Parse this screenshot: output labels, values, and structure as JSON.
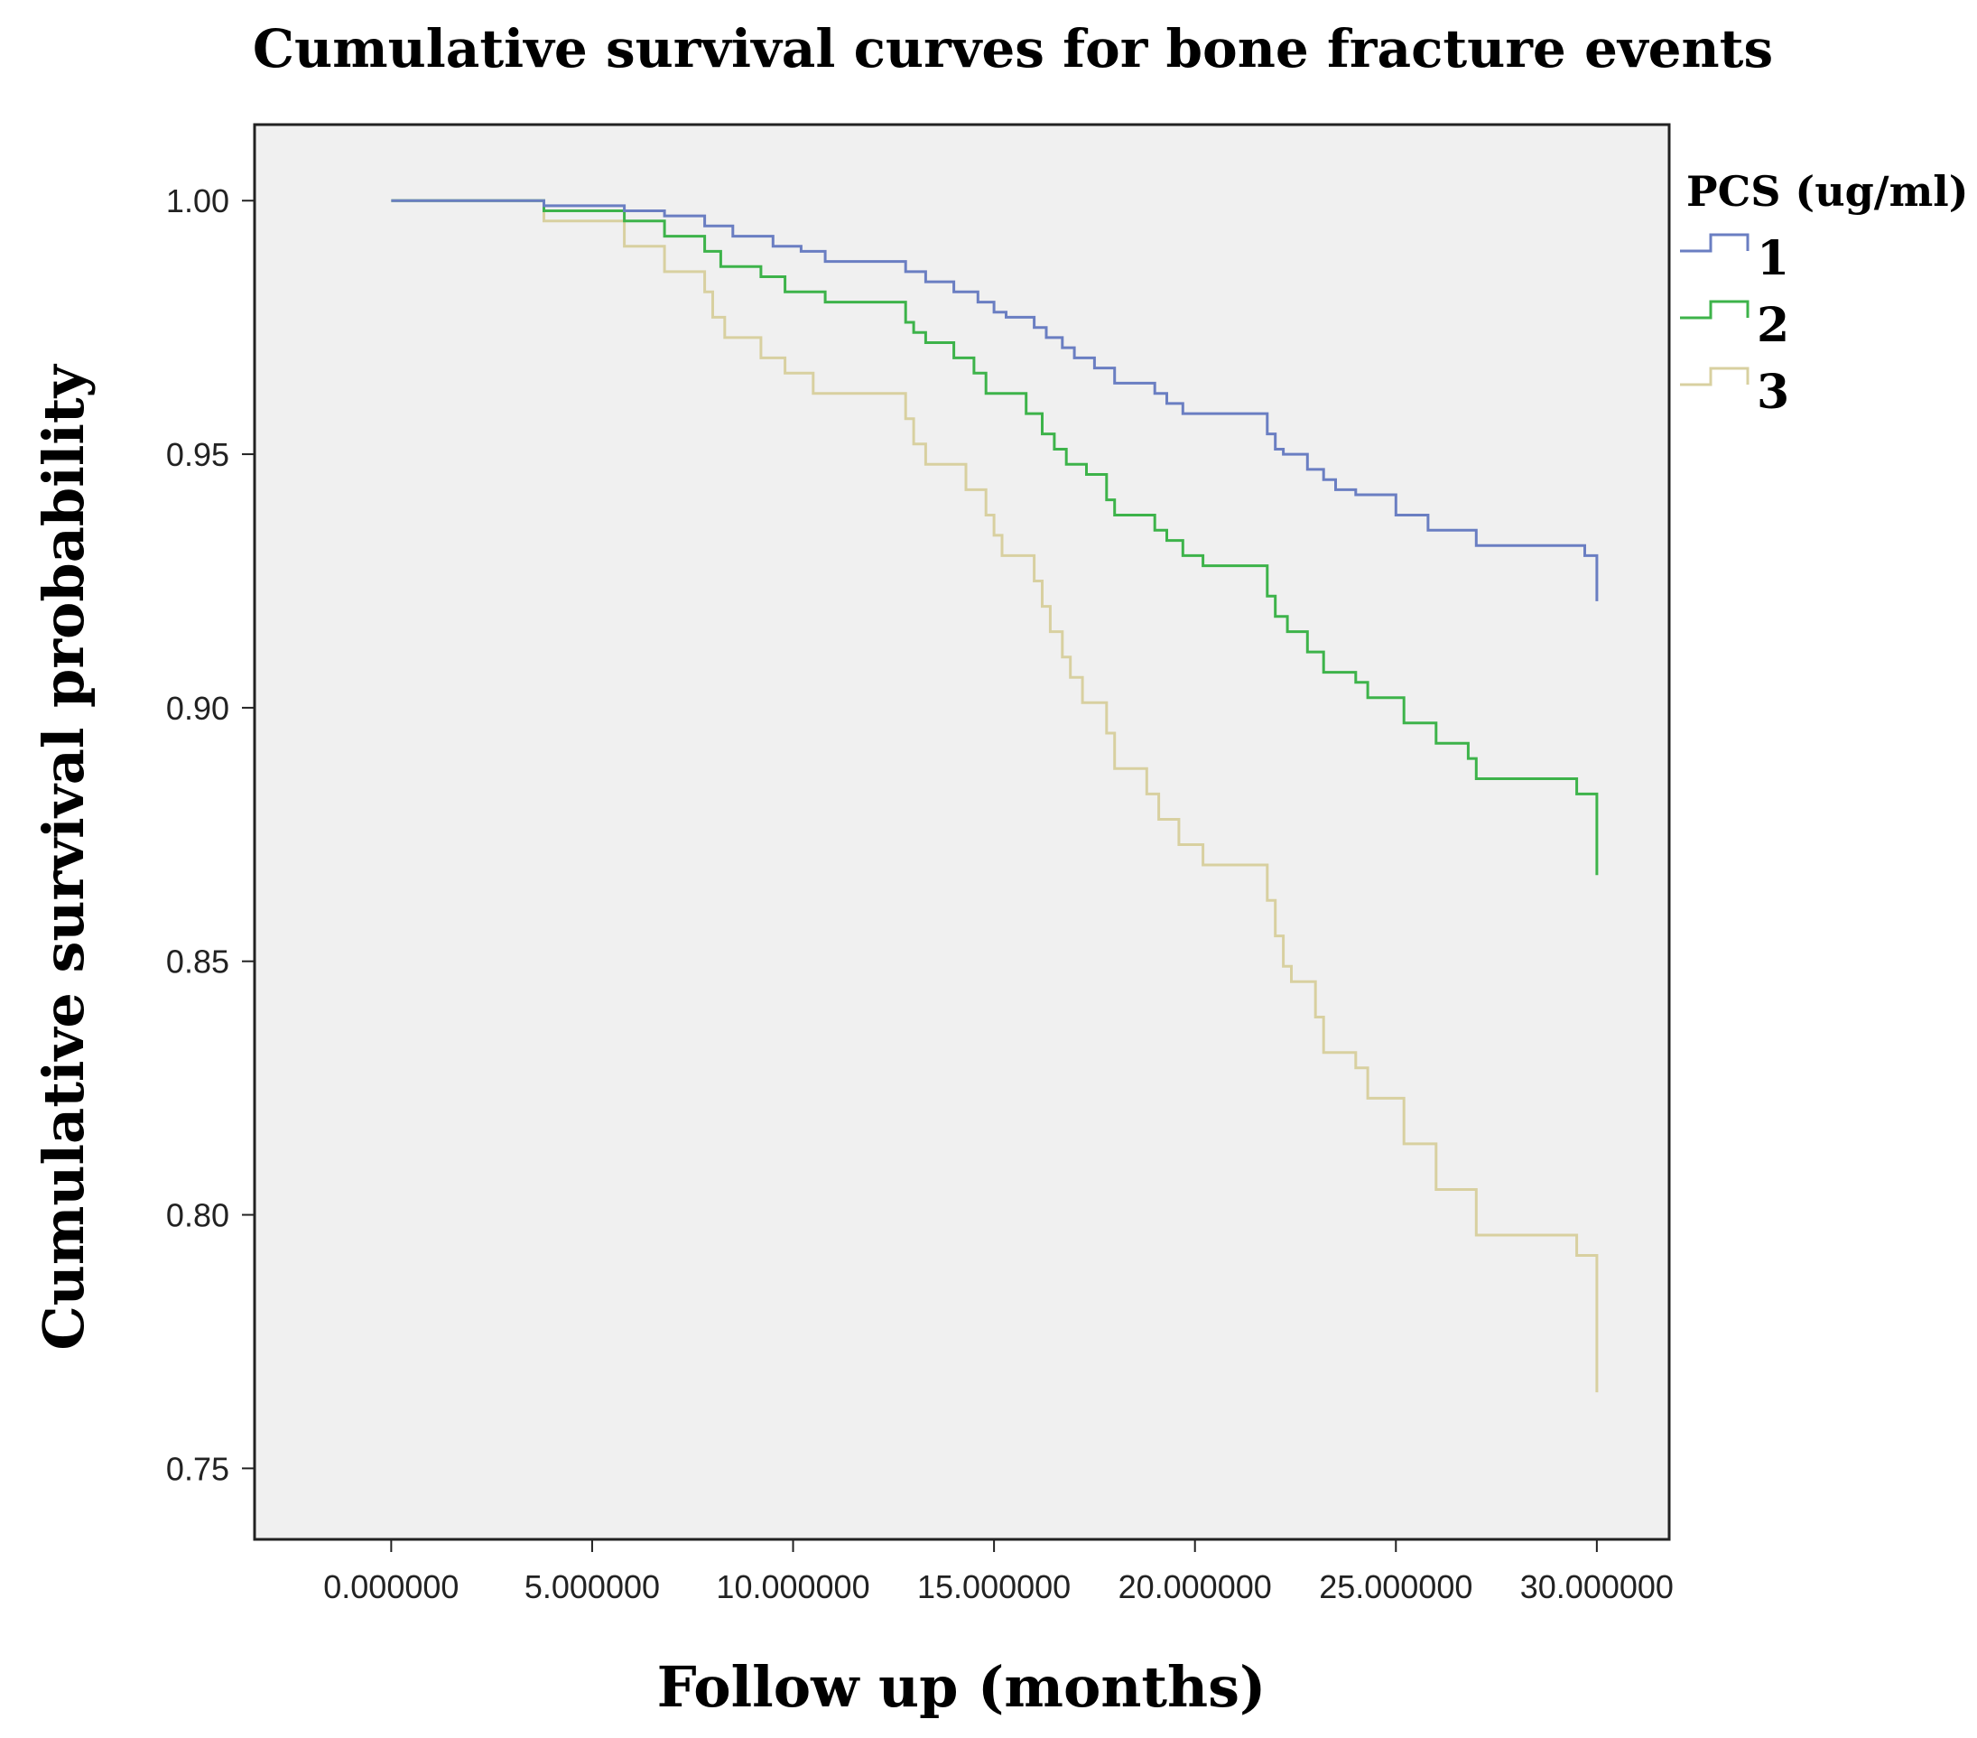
{
  "chart_data": {
    "type": "line",
    "step": true,
    "title": "Cumulative survival curves for bone fracture events",
    "xlabel": "Follow up (months)",
    "ylabel": "Cumulative survival probability",
    "xlim": [
      -3.4,
      31.8
    ],
    "ylim": [
      0.736,
      1.015
    ],
    "xticks": [
      0,
      5,
      10,
      15,
      20,
      25,
      30
    ],
    "xtick_labels": [
      "0.000000",
      "5.000000",
      "10.000000",
      "15.000000",
      "20.000000",
      "25.000000",
      "30.000000"
    ],
    "yticks": [
      1.0,
      0.95,
      0.9,
      0.85,
      0.8,
      0.75
    ],
    "ytick_labels": [
      "1.00",
      "0.95",
      "0.90",
      "0.85",
      "0.80",
      "0.75"
    ],
    "grid": false,
    "legend": {
      "title": "PCS (ug/ml)",
      "position": "top-right-outside"
    },
    "series": [
      {
        "name": "1",
        "color": "#6a7ec2",
        "points": [
          [
            0,
            1.0
          ],
          [
            3.8,
            1.0
          ],
          [
            3.8,
            0.999
          ],
          [
            5.8,
            0.999
          ],
          [
            5.8,
            0.998
          ],
          [
            6.8,
            0.998
          ],
          [
            6.8,
            0.997
          ],
          [
            7.8,
            0.997
          ],
          [
            7.8,
            0.995
          ],
          [
            8.5,
            0.995
          ],
          [
            8.5,
            0.993
          ],
          [
            9.5,
            0.993
          ],
          [
            9.5,
            0.991
          ],
          [
            10.2,
            0.991
          ],
          [
            10.2,
            0.99
          ],
          [
            10.8,
            0.99
          ],
          [
            10.8,
            0.988
          ],
          [
            12.8,
            0.988
          ],
          [
            12.8,
            0.986
          ],
          [
            13.3,
            0.986
          ],
          [
            13.3,
            0.984
          ],
          [
            14.0,
            0.984
          ],
          [
            14.0,
            0.982
          ],
          [
            14.6,
            0.982
          ],
          [
            14.6,
            0.98
          ],
          [
            15.0,
            0.98
          ],
          [
            15.0,
            0.978
          ],
          [
            15.3,
            0.978
          ],
          [
            15.3,
            0.977
          ],
          [
            16.0,
            0.977
          ],
          [
            16.0,
            0.975
          ],
          [
            16.3,
            0.975
          ],
          [
            16.3,
            0.973
          ],
          [
            16.7,
            0.973
          ],
          [
            16.7,
            0.971
          ],
          [
            17.0,
            0.971
          ],
          [
            17.0,
            0.969
          ],
          [
            17.5,
            0.969
          ],
          [
            17.5,
            0.967
          ],
          [
            18.0,
            0.967
          ],
          [
            18.0,
            0.964
          ],
          [
            19.0,
            0.964
          ],
          [
            19.0,
            0.962
          ],
          [
            19.3,
            0.962
          ],
          [
            19.3,
            0.96
          ],
          [
            19.7,
            0.96
          ],
          [
            19.7,
            0.958
          ],
          [
            21.8,
            0.958
          ],
          [
            21.8,
            0.954
          ],
          [
            22.0,
            0.954
          ],
          [
            22.0,
            0.951
          ],
          [
            22.2,
            0.951
          ],
          [
            22.2,
            0.95
          ],
          [
            22.8,
            0.95
          ],
          [
            22.8,
            0.947
          ],
          [
            23.2,
            0.947
          ],
          [
            23.2,
            0.945
          ],
          [
            23.5,
            0.945
          ],
          [
            23.5,
            0.943
          ],
          [
            24.0,
            0.943
          ],
          [
            24.0,
            0.942
          ],
          [
            25.0,
            0.942
          ],
          [
            25.0,
            0.938
          ],
          [
            25.8,
            0.938
          ],
          [
            25.8,
            0.935
          ],
          [
            27.0,
            0.935
          ],
          [
            27.0,
            0.932
          ],
          [
            29.7,
            0.932
          ],
          [
            29.7,
            0.93
          ],
          [
            30.0,
            0.93
          ],
          [
            30.0,
            0.921
          ]
        ]
      },
      {
        "name": "2",
        "color": "#3db34a",
        "points": [
          [
            0,
            1.0
          ],
          [
            3.8,
            1.0
          ],
          [
            3.8,
            0.998
          ],
          [
            5.8,
            0.998
          ],
          [
            5.8,
            0.996
          ],
          [
            6.8,
            0.996
          ],
          [
            6.8,
            0.993
          ],
          [
            7.8,
            0.993
          ],
          [
            7.8,
            0.99
          ],
          [
            8.2,
            0.99
          ],
          [
            8.2,
            0.987
          ],
          [
            9.2,
            0.987
          ],
          [
            9.2,
            0.985
          ],
          [
            9.8,
            0.985
          ],
          [
            9.8,
            0.982
          ],
          [
            10.8,
            0.982
          ],
          [
            10.8,
            0.98
          ],
          [
            12.8,
            0.98
          ],
          [
            12.8,
            0.976
          ],
          [
            13.0,
            0.976
          ],
          [
            13.0,
            0.974
          ],
          [
            13.3,
            0.974
          ],
          [
            13.3,
            0.972
          ],
          [
            14.0,
            0.972
          ],
          [
            14.0,
            0.969
          ],
          [
            14.5,
            0.969
          ],
          [
            14.5,
            0.966
          ],
          [
            14.8,
            0.966
          ],
          [
            14.8,
            0.962
          ],
          [
            15.8,
            0.962
          ],
          [
            15.8,
            0.958
          ],
          [
            16.2,
            0.958
          ],
          [
            16.2,
            0.954
          ],
          [
            16.5,
            0.954
          ],
          [
            16.5,
            0.951
          ],
          [
            16.8,
            0.951
          ],
          [
            16.8,
            0.948
          ],
          [
            17.3,
            0.948
          ],
          [
            17.3,
            0.946
          ],
          [
            17.8,
            0.946
          ],
          [
            17.8,
            0.941
          ],
          [
            18.0,
            0.941
          ],
          [
            18.0,
            0.938
          ],
          [
            19.0,
            0.938
          ],
          [
            19.0,
            0.935
          ],
          [
            19.3,
            0.935
          ],
          [
            19.3,
            0.933
          ],
          [
            19.7,
            0.933
          ],
          [
            19.7,
            0.93
          ],
          [
            20.2,
            0.93
          ],
          [
            20.2,
            0.928
          ],
          [
            21.8,
            0.928
          ],
          [
            21.8,
            0.922
          ],
          [
            22.0,
            0.922
          ],
          [
            22.0,
            0.918
          ],
          [
            22.3,
            0.918
          ],
          [
            22.3,
            0.915
          ],
          [
            22.8,
            0.915
          ],
          [
            22.8,
            0.911
          ],
          [
            23.2,
            0.911
          ],
          [
            23.2,
            0.907
          ],
          [
            24.0,
            0.907
          ],
          [
            24.0,
            0.905
          ],
          [
            24.3,
            0.905
          ],
          [
            24.3,
            0.902
          ],
          [
            25.2,
            0.902
          ],
          [
            25.2,
            0.897
          ],
          [
            26.0,
            0.897
          ],
          [
            26.0,
            0.893
          ],
          [
            26.8,
            0.893
          ],
          [
            26.8,
            0.89
          ],
          [
            27.0,
            0.89
          ],
          [
            27.0,
            0.886
          ],
          [
            29.5,
            0.886
          ],
          [
            29.5,
            0.883
          ],
          [
            30.0,
            0.883
          ],
          [
            30.0,
            0.867
          ]
        ]
      },
      {
        "name": "3",
        "color": "#d8d0a0",
        "points": [
          [
            0,
            1.0
          ],
          [
            3.8,
            1.0
          ],
          [
            3.8,
            0.996
          ],
          [
            5.8,
            0.996
          ],
          [
            5.8,
            0.991
          ],
          [
            6.8,
            0.991
          ],
          [
            6.8,
            0.986
          ],
          [
            7.8,
            0.986
          ],
          [
            7.8,
            0.982
          ],
          [
            8.0,
            0.982
          ],
          [
            8.0,
            0.977
          ],
          [
            8.3,
            0.977
          ],
          [
            8.3,
            0.973
          ],
          [
            9.2,
            0.973
          ],
          [
            9.2,
            0.969
          ],
          [
            9.8,
            0.969
          ],
          [
            9.8,
            0.966
          ],
          [
            10.5,
            0.966
          ],
          [
            10.5,
            0.962
          ],
          [
            12.8,
            0.962
          ],
          [
            12.8,
            0.957
          ],
          [
            13.0,
            0.957
          ],
          [
            13.0,
            0.952
          ],
          [
            13.3,
            0.952
          ],
          [
            13.3,
            0.948
          ],
          [
            14.3,
            0.948
          ],
          [
            14.3,
            0.943
          ],
          [
            14.8,
            0.943
          ],
          [
            14.8,
            0.938
          ],
          [
            15.0,
            0.938
          ],
          [
            15.0,
            0.934
          ],
          [
            15.2,
            0.934
          ],
          [
            15.2,
            0.93
          ],
          [
            16.0,
            0.93
          ],
          [
            16.0,
            0.925
          ],
          [
            16.2,
            0.925
          ],
          [
            16.2,
            0.92
          ],
          [
            16.4,
            0.92
          ],
          [
            16.4,
            0.915
          ],
          [
            16.7,
            0.915
          ],
          [
            16.7,
            0.91
          ],
          [
            16.9,
            0.91
          ],
          [
            16.9,
            0.906
          ],
          [
            17.2,
            0.906
          ],
          [
            17.2,
            0.901
          ],
          [
            17.8,
            0.901
          ],
          [
            17.8,
            0.895
          ],
          [
            18.0,
            0.895
          ],
          [
            18.0,
            0.888
          ],
          [
            18.8,
            0.888
          ],
          [
            18.8,
            0.883
          ],
          [
            19.1,
            0.883
          ],
          [
            19.1,
            0.878
          ],
          [
            19.6,
            0.878
          ],
          [
            19.6,
            0.873
          ],
          [
            20.2,
            0.873
          ],
          [
            20.2,
            0.869
          ],
          [
            21.8,
            0.869
          ],
          [
            21.8,
            0.862
          ],
          [
            22.0,
            0.862
          ],
          [
            22.0,
            0.855
          ],
          [
            22.2,
            0.855
          ],
          [
            22.2,
            0.849
          ],
          [
            22.4,
            0.849
          ],
          [
            22.4,
            0.846
          ],
          [
            23.0,
            0.846
          ],
          [
            23.0,
            0.839
          ],
          [
            23.2,
            0.839
          ],
          [
            23.2,
            0.832
          ],
          [
            24.0,
            0.832
          ],
          [
            24.0,
            0.829
          ],
          [
            24.3,
            0.829
          ],
          [
            24.3,
            0.823
          ],
          [
            25.2,
            0.823
          ],
          [
            25.2,
            0.814
          ],
          [
            26.0,
            0.814
          ],
          [
            26.0,
            0.805
          ],
          [
            27.0,
            0.805
          ],
          [
            27.0,
            0.796
          ],
          [
            29.5,
            0.796
          ],
          [
            29.5,
            0.792
          ],
          [
            30.0,
            0.792
          ],
          [
            30.0,
            0.765
          ]
        ]
      }
    ]
  }
}
